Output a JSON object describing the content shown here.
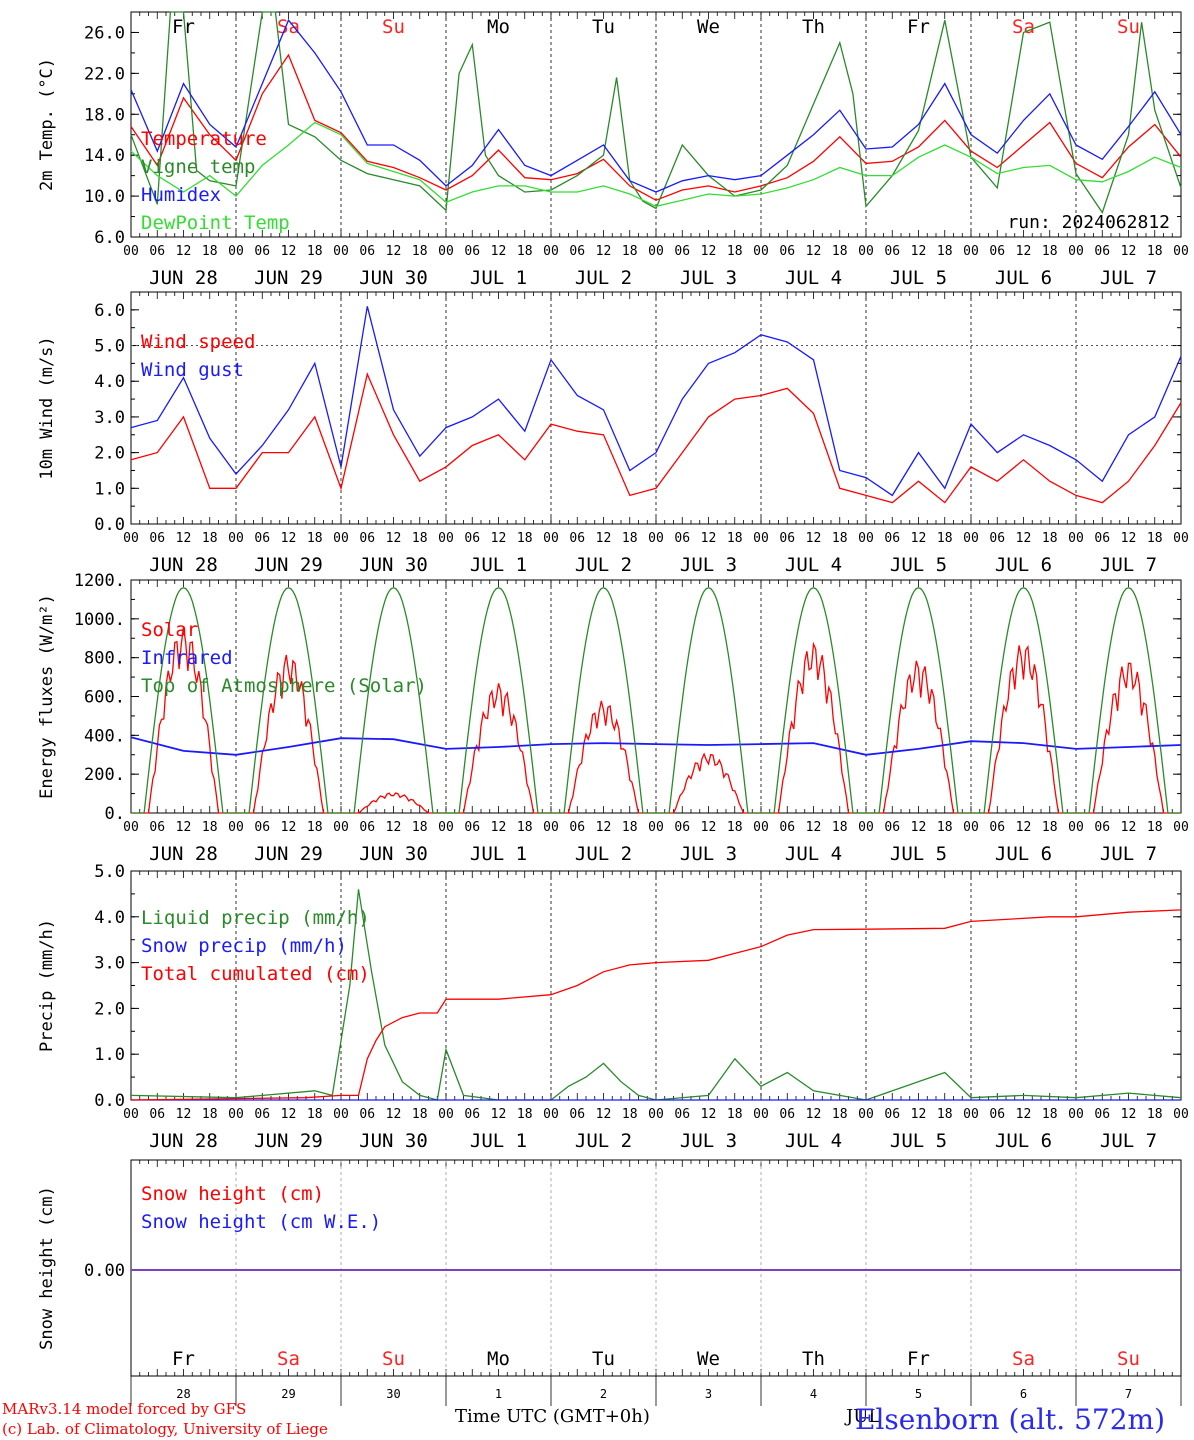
{
  "meta": {
    "run_label": "run: 2024062812",
    "model_label": "MARv3.14 model forced by GFS",
    "lab_label": "(c) Lab. of Climatology, University of Liege",
    "time_axis_label": "Time UTC (GMT+0h)",
    "station_label": "Elsenborn (alt. 572m)",
    "jul_fragment": "JUL"
  },
  "colors": {
    "temperature": "#ff0000",
    "vigne": "#2a8a2a",
    "humidex": "#1a1aff",
    "dewpoint": "#33dd33",
    "weekend": "#ff2222",
    "weekday": "#000000"
  },
  "days": [
    {
      "label": "Fr",
      "weekend": false,
      "date": "JUN 28",
      "num": "28"
    },
    {
      "label": "Sa",
      "weekend": true,
      "date": "JUN 29",
      "num": "29"
    },
    {
      "label": "Su",
      "weekend": true,
      "date": "JUN 30",
      "num": "30"
    },
    {
      "label": "Mo",
      "weekend": false,
      "date": "JUL  1",
      "num": "1"
    },
    {
      "label": "Tu",
      "weekend": false,
      "date": "JUL  2",
      "num": "2"
    },
    {
      "label": "We",
      "weekend": false,
      "date": "JUL  3",
      "num": "3"
    },
    {
      "label": "Th",
      "weekend": false,
      "date": "JUL  4",
      "num": "4"
    },
    {
      "label": "Fr",
      "weekend": false,
      "date": "JUL  5",
      "num": "5"
    },
    {
      "label": "Sa",
      "weekend": true,
      "date": "JUL  6",
      "num": "6"
    },
    {
      "label": "Su",
      "weekend": true,
      "date": "JUL  7",
      "num": "7"
    }
  ],
  "hour_ticks": [
    "00",
    "06",
    "12",
    "18"
  ],
  "hour_end": "00",
  "chart_data": [
    {
      "type": "line",
      "ylabel": "2m Temp. (°C)",
      "ylim": [
        6,
        28
      ],
      "yticks": [
        "6.0",
        "10.0",
        "14.0",
        "18.0",
        "22.0",
        "26.0"
      ],
      "x_unit": "hours since JUN 28 00 UTC",
      "series": [
        {
          "name": "Temperature",
          "color": "#ff0000",
          "x": [
            0,
            6,
            12,
            18,
            24,
            30,
            36,
            42,
            48,
            54,
            60,
            66,
            72,
            78,
            84,
            90,
            96,
            102,
            108,
            114,
            120,
            126,
            132,
            138,
            144,
            150,
            156,
            162,
            168,
            174,
            180,
            186,
            192,
            198,
            204,
            210,
            216,
            222,
            228,
            234,
            240
          ],
          "y": [
            16.8,
            13.0,
            19.6,
            16.0,
            13.5,
            20.0,
            23.8,
            17.4,
            16.2,
            13.4,
            12.8,
            11.8,
            10.6,
            12.0,
            14.5,
            11.8,
            11.6,
            12.2,
            13.6,
            11.0,
            9.6,
            10.6,
            11.0,
            10.4,
            11.0,
            11.8,
            13.4,
            15.8,
            13.2,
            13.4,
            14.8,
            17.4,
            14.4,
            12.8,
            15.0,
            17.2,
            13.2,
            11.8,
            14.8,
            17.0,
            13.8
          ]
        },
        {
          "name": "Vigne temp",
          "color": "#2a8a2a",
          "x": [
            0,
            6,
            9,
            12,
            15,
            18,
            24,
            30,
            33,
            36,
            42,
            48,
            54,
            60,
            66,
            72,
            75,
            78,
            81,
            84,
            90,
            96,
            102,
            108,
            111,
            114,
            117,
            120,
            126,
            132,
            138,
            144,
            150,
            156,
            162,
            165,
            168,
            174,
            180,
            186,
            192,
            198,
            204,
            210,
            216,
            222,
            228,
            231,
            234,
            240
          ],
          "y": [
            16.0,
            9.2,
            30.0,
            30.0,
            12.5,
            11.5,
            11.0,
            30.0,
            30.0,
            17.0,
            15.8,
            13.5,
            12.2,
            11.6,
            11.0,
            8.6,
            22.0,
            24.8,
            14.0,
            12.0,
            10.4,
            10.6,
            12.0,
            14.0,
            21.6,
            11.5,
            9.5,
            8.8,
            15.0,
            12.0,
            10.0,
            10.6,
            13.0,
            19.0,
            25.0,
            20.0,
            9.0,
            12.0,
            16.4,
            27.2,
            13.8,
            10.8,
            26.0,
            27.0,
            12.2,
            8.4,
            16.0,
            27.0,
            18.4,
            10.8
          ]
        },
        {
          "name": "Humidex",
          "color": "#1a1aff",
          "x": [
            0,
            6,
            12,
            18,
            24,
            30,
            36,
            42,
            48,
            54,
            60,
            66,
            72,
            78,
            84,
            90,
            96,
            102,
            108,
            114,
            120,
            126,
            132,
            138,
            144,
            150,
            156,
            162,
            168,
            174,
            180,
            186,
            192,
            198,
            204,
            210,
            216,
            222,
            228,
            234,
            240
          ],
          "y": [
            20.4,
            14.4,
            21.0,
            17.0,
            14.8,
            21.0,
            27.2,
            24.0,
            20.2,
            15.0,
            15.0,
            13.5,
            11.0,
            13.0,
            16.5,
            13.0,
            12.0,
            13.5,
            15.0,
            11.5,
            10.4,
            11.5,
            12.0,
            11.6,
            12.0,
            14.0,
            16.0,
            18.4,
            14.6,
            14.8,
            17.0,
            21.0,
            16.0,
            14.2,
            17.4,
            20.0,
            15.0,
            13.6,
            16.8,
            20.2,
            16.0
          ]
        },
        {
          "name": "DewPoint Temp",
          "color": "#33dd33",
          "x": [
            0,
            6,
            12,
            18,
            24,
            30,
            36,
            42,
            48,
            54,
            60,
            66,
            72,
            78,
            84,
            90,
            96,
            102,
            108,
            114,
            120,
            126,
            132,
            138,
            144,
            150,
            156,
            162,
            168,
            174,
            180,
            186,
            192,
            198,
            204,
            210,
            216,
            222,
            228,
            234,
            240
          ],
          "y": [
            14.4,
            12.0,
            10.4,
            12.0,
            10.0,
            13.0,
            15.0,
            17.2,
            16.0,
            13.2,
            12.4,
            11.6,
            9.4,
            10.4,
            11.0,
            11.0,
            10.4,
            10.4,
            11.0,
            10.2,
            9.0,
            9.6,
            10.2,
            10.0,
            10.2,
            10.8,
            11.6,
            12.8,
            12.0,
            12.0,
            13.8,
            15.0,
            13.8,
            12.2,
            12.8,
            13.0,
            11.6,
            11.4,
            12.4,
            13.8,
            12.8
          ]
        }
      ]
    },
    {
      "type": "line",
      "ylabel": "10m Wind (m/s)",
      "ylim": [
        0,
        6.5
      ],
      "yticks": [
        "0.0",
        "1.0",
        "2.0",
        "3.0",
        "4.0",
        "5.0",
        "6.0"
      ],
      "ref_line": 5.0,
      "x_unit": "hours since JUN 28 00 UTC",
      "series": [
        {
          "name": "Wind speed",
          "color": "#ff0000",
          "x": [
            0,
            6,
            12,
            18,
            24,
            30,
            36,
            42,
            48,
            54,
            60,
            66,
            72,
            78,
            84,
            90,
            96,
            102,
            108,
            114,
            120,
            126,
            132,
            138,
            144,
            150,
            156,
            162,
            168,
            174,
            180,
            186,
            192,
            198,
            204,
            210,
            216,
            222,
            228,
            234,
            240
          ],
          "y": [
            1.8,
            2.0,
            3.0,
            1.0,
            1.0,
            2.0,
            2.0,
            3.0,
            1.0,
            4.2,
            2.5,
            1.2,
            1.6,
            2.2,
            2.5,
            1.8,
            2.8,
            2.6,
            2.5,
            0.8,
            1.0,
            2.0,
            3.0,
            3.5,
            3.6,
            3.8,
            3.1,
            1.0,
            0.8,
            0.6,
            1.2,
            0.6,
            1.6,
            1.2,
            1.8,
            1.2,
            0.8,
            0.6,
            1.2,
            2.2,
            3.4
          ]
        },
        {
          "name": "Wind gust",
          "color": "#1a1aff",
          "x": [
            0,
            6,
            12,
            18,
            24,
            30,
            36,
            42,
            48,
            54,
            60,
            66,
            72,
            78,
            84,
            90,
            96,
            102,
            108,
            114,
            120,
            126,
            132,
            138,
            144,
            150,
            156,
            162,
            168,
            174,
            180,
            186,
            192,
            198,
            204,
            210,
            216,
            222,
            228,
            234,
            240
          ],
          "y": [
            2.7,
            2.9,
            4.1,
            2.4,
            1.4,
            2.2,
            3.2,
            4.5,
            1.6,
            6.1,
            3.2,
            1.9,
            2.7,
            3.0,
            3.5,
            2.6,
            4.6,
            3.6,
            3.2,
            1.5,
            2.0,
            3.5,
            4.5,
            4.8,
            5.3,
            5.1,
            4.6,
            1.5,
            1.3,
            0.8,
            2.0,
            1.0,
            2.8,
            2.0,
            2.5,
            2.2,
            1.8,
            1.2,
            2.5,
            3.0,
            4.7
          ]
        }
      ]
    },
    {
      "type": "line",
      "ylabel": "Energy fluxes (W/m²)",
      "ylim": [
        0,
        1200
      ],
      "yticks": [
        "0.",
        "200.",
        "400.",
        "600.",
        "800.",
        "1000.",
        "1200."
      ],
      "x_unit": "hours since JUN 28 00 UTC",
      "series": [
        {
          "name": "Solar",
          "color": "#ff0000",
          "daily_peak": [
            960,
            820,
            105,
            670,
            580,
            310,
            880,
            790,
            880,
            790
          ]
        },
        {
          "name": "Infrared",
          "color": "#1a1aff",
          "x": [
            0,
            12,
            24,
            36,
            48,
            60,
            72,
            84,
            96,
            108,
            120,
            132,
            144,
            156,
            168,
            180,
            192,
            204,
            216,
            228,
            240
          ],
          "y": [
            390,
            320,
            300,
            340,
            385,
            380,
            330,
            340,
            355,
            360,
            355,
            350,
            355,
            360,
            300,
            330,
            370,
            360,
            330,
            340,
            350
          ]
        },
        {
          "name": "Top of Atmosphere (Solar)",
          "color": "#2a8a2a",
          "daily_peak": [
            1160,
            1160,
            1160,
            1160,
            1160,
            1160,
            1160,
            1160,
            1160,
            1160
          ]
        }
      ]
    },
    {
      "type": "line",
      "ylabel": "Precip (mm/h)",
      "ylim": [
        0,
        5
      ],
      "yticks": [
        "0.0",
        "1.0",
        "2.0",
        "3.0",
        "4.0",
        "5.0"
      ],
      "x_unit": "hours since JUN 28 00 UTC",
      "series": [
        {
          "name": "Liquid precip (mm/h)",
          "color": "#2a8a2a",
          "x": [
            0,
            24,
            42,
            46,
            50,
            52,
            55,
            58,
            62,
            66,
            70,
            72,
            76,
            84,
            96,
            100,
            104,
            108,
            112,
            116,
            120,
            132,
            138,
            144,
            150,
            156,
            168,
            186,
            192,
            204,
            216,
            228,
            240
          ],
          "y": [
            0.1,
            0.05,
            0.2,
            0.1,
            2.5,
            4.6,
            2.8,
            1.2,
            0.4,
            0.1,
            0.0,
            1.1,
            0.1,
            0.0,
            0.0,
            0.3,
            0.5,
            0.8,
            0.4,
            0.1,
            0.0,
            0.1,
            0.9,
            0.3,
            0.6,
            0.2,
            0.0,
            0.6,
            0.05,
            0.1,
            0.05,
            0.15,
            0.05
          ]
        },
        {
          "name": "Snow precip (mm/h)",
          "color": "#1a1aff",
          "x": [
            0,
            240
          ],
          "y": [
            0,
            0
          ]
        },
        {
          "name": "Total cumulated (cm)",
          "color": "#ff0000",
          "x": [
            0,
            40,
            48,
            52,
            54,
            56,
            58,
            62,
            66,
            70,
            72,
            84,
            96,
            102,
            108,
            114,
            120,
            132,
            138,
            144,
            150,
            156,
            168,
            186,
            192,
            210,
            216,
            228,
            240
          ],
          "y": [
            0,
            0.05,
            0.1,
            0.1,
            0.9,
            1.3,
            1.6,
            1.8,
            1.9,
            1.9,
            2.2,
            2.2,
            2.3,
            2.5,
            2.8,
            2.95,
            3.0,
            3.05,
            3.2,
            3.35,
            3.6,
            3.72,
            3.73,
            3.75,
            3.9,
            4.0,
            4.0,
            4.1,
            4.15
          ]
        }
      ]
    },
    {
      "type": "line",
      "ylabel": "Snow height (cm)",
      "yticks": [
        "0.00"
      ],
      "x_unit": "hours since JUN 28 00 UTC",
      "series": [
        {
          "name": "Snow height (cm)",
          "color": "#ff0000",
          "x": [
            0,
            240
          ],
          "y": [
            0,
            0
          ]
        },
        {
          "name": "Snow height (cm W.E.)",
          "color": "#1a1aff",
          "x": [
            0,
            240
          ],
          "y": [
            0,
            0
          ]
        }
      ]
    }
  ]
}
